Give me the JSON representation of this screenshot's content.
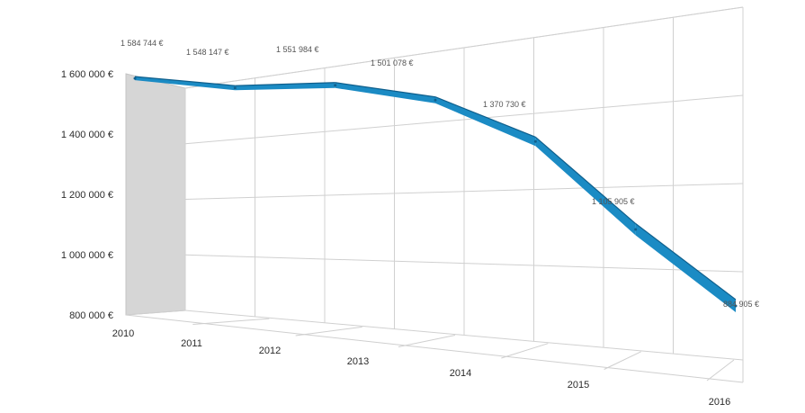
{
  "chart_data": {
    "type": "line",
    "style": "3d-ribbon",
    "categories": [
      "2010",
      "2011",
      "2012",
      "2013",
      "2014",
      "2015",
      "2016"
    ],
    "series": [
      {
        "values": [
          1584744,
          1548147,
          1551984,
          1501078,
          1370730,
          1105905,
          884905
        ],
        "labels": [
          "1 584 744 €",
          "1 548 147 €",
          "1 551 984 €",
          "1 501 078 €",
          "1 370 730 €",
          "1 105 905 €",
          "884 905 €"
        ],
        "color": "#1b8bc4"
      }
    ],
    "yticks": [
      "800 000 €",
      "1 000 000 €",
      "1 200 000 €",
      "1 400 000 €",
      "1 600 000 €"
    ],
    "ytick_values": [
      800000,
      1000000,
      1200000,
      1400000,
      1600000
    ],
    "ylim": [
      800000,
      1600000
    ],
    "grid": true,
    "legend": "none",
    "colors": {
      "ribbon": "#1b8bc4",
      "ribbon_top": "#0f5f8c",
      "side_wall": "#d6d6d6",
      "grid": "#d0d0d0",
      "background": "#ffffff"
    }
  }
}
